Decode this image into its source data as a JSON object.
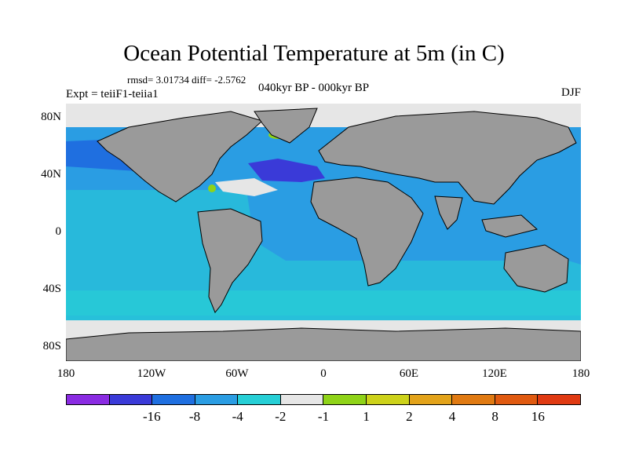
{
  "title": "Ocean Potential Temperature at 5m (in C)",
  "stats": "rmsd= 3.01734  diff= -2.5762",
  "experiment": "Expt = teiiF1-teiia1",
  "period": "040kyr BP - 000kyr BP",
  "season": "DJF",
  "y_ticks": [
    "80N",
    "40N",
    "0",
    "40S",
    "80S"
  ],
  "x_ticks": [
    "180",
    "120W",
    "60W",
    "0",
    "60E",
    "120E",
    "180"
  ],
  "colorbar": {
    "colors": [
      "#8a2be2",
      "#3a3ad8",
      "#1f6fe0",
      "#2a9de3",
      "#26cfd6",
      "#e6e6e6",
      "#8fd318",
      "#cdd21a",
      "#e3a31a",
      "#e07a12",
      "#e05a10",
      "#e03a12"
    ],
    "labels": [
      "-16",
      "-8",
      "-4",
      "-2",
      "-1",
      "1",
      "2",
      "4",
      "8",
      "16"
    ]
  }
}
